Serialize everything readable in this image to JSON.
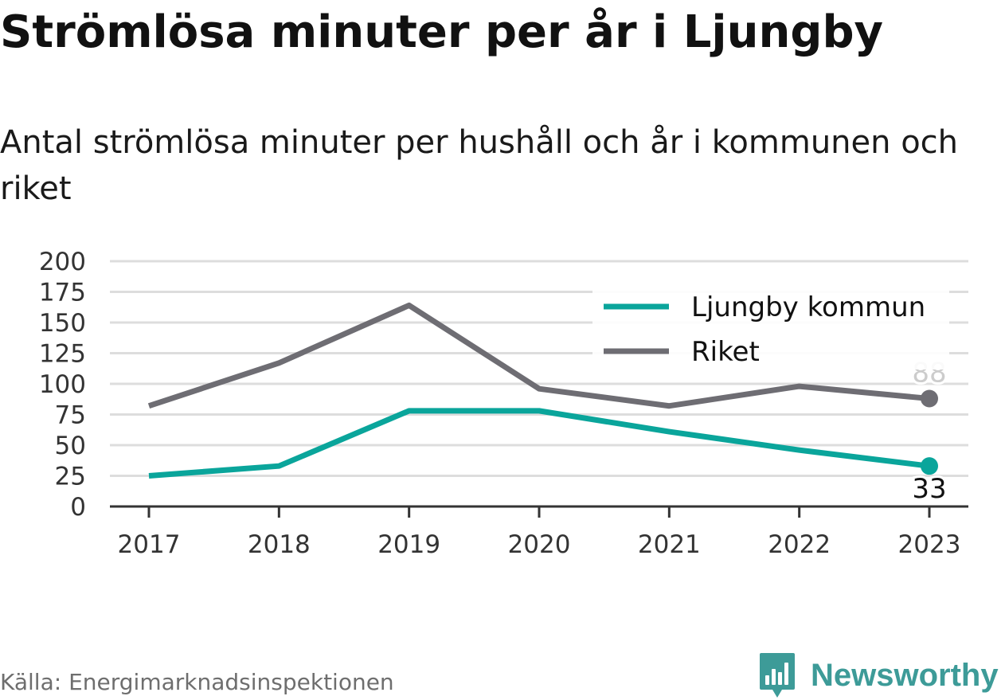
{
  "title": "Strömlösa minuter per år i Ljungby",
  "subtitle": "Antal strömlösa minuter per hushåll och år i kommunen och riket",
  "source": "Källa: Energimarknadsinspektionen",
  "brand": {
    "name": "Newsworthy",
    "logo_icon": "bar-chart-badge-icon",
    "color": "#3d9b98"
  },
  "chart_data": {
    "type": "line",
    "x": [
      2017,
      2018,
      2019,
      2020,
      2021,
      2022,
      2023
    ],
    "ylim": [
      0,
      200
    ],
    "yticks": [
      0,
      25,
      50,
      75,
      100,
      125,
      150,
      175,
      200
    ],
    "grid": true,
    "legend_position": "top-right",
    "series": [
      {
        "name": "Ljungby kommun",
        "color": "#0aa59b",
        "values": [
          25,
          33,
          78,
          78,
          61,
          46,
          33
        ],
        "end_label": "33"
      },
      {
        "name": "Riket",
        "color": "#6e6d73",
        "values": [
          82,
          117,
          164,
          96,
          82,
          98,
          88
        ],
        "end_label": "88"
      }
    ]
  }
}
